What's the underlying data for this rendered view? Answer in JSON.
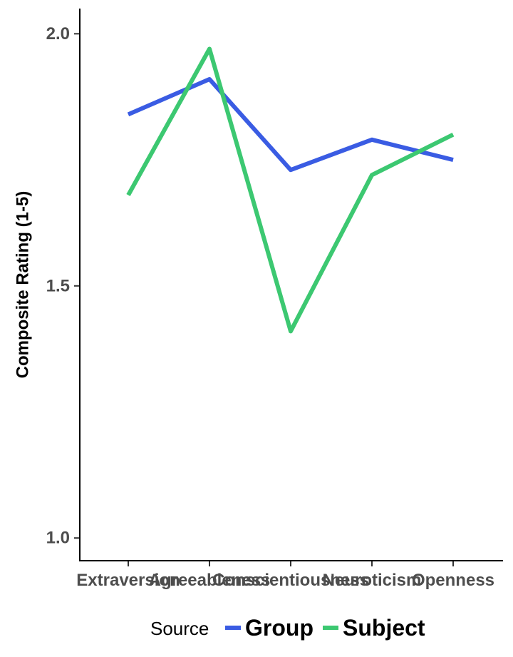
{
  "chart_data": {
    "type": "line",
    "categories": [
      "Extraversion",
      "Agreeableness",
      "Conscientiousness",
      "Neuroticism",
      "Openness"
    ],
    "series": [
      {
        "name": "Group",
        "color": "#3a5ce3",
        "values": [
          1.84,
          1.91,
          1.73,
          1.79,
          1.75
        ]
      },
      {
        "name": "Subject",
        "color": "#3cc871",
        "values": [
          1.68,
          1.97,
          1.41,
          1.72,
          1.8
        ]
      }
    ],
    "title": "",
    "xlabel": "",
    "ylabel": "Composite Rating (1-5)",
    "ylim": [
      0.955,
      2.05
    ],
    "yticks": [
      "1.0",
      "1.5",
      "2.0"
    ],
    "grid": false,
    "legend": {
      "title": "Source",
      "position": "bottom"
    }
  }
}
